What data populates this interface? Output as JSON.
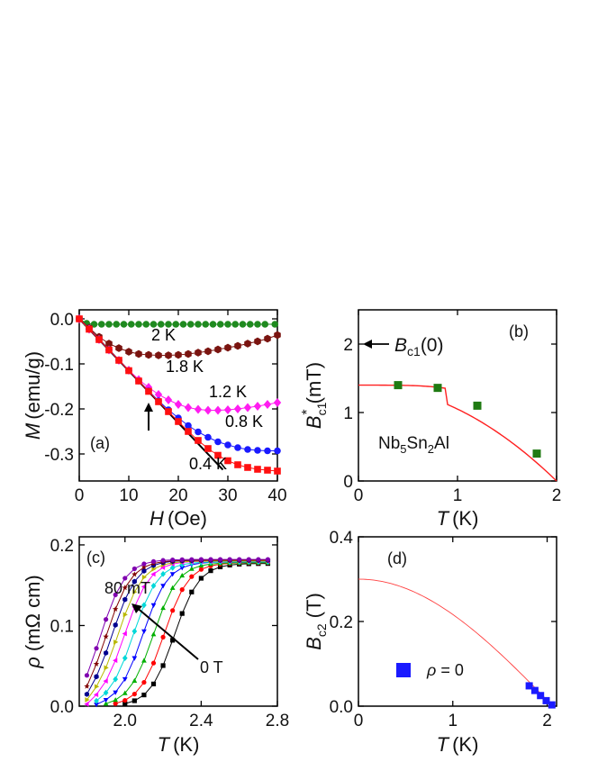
{
  "chart_data": [
    {
      "panel": "(a)",
      "type": "scatter",
      "xlabel": {
        "symbol": "H",
        "unit": "(Oe)"
      },
      "ylabel": {
        "symbol": "M",
        "unit": "(emu/g)"
      },
      "xlim": [
        0,
        40
      ],
      "ylim": [
        -0.36,
        0.02
      ],
      "xticks": [
        "0",
        "10",
        "20",
        "30",
        "40"
      ],
      "yticks": [
        "0.0",
        "-0.1",
        "-0.2",
        "-0.3"
      ],
      "ytick_values": [
        0,
        -0.1,
        -0.2,
        -0.3
      ],
      "xtick_values": [
        0,
        10,
        20,
        30,
        40
      ],
      "series": [
        {
          "name": "2 K",
          "color": "#1f8a1f",
          "marker": "circle",
          "x": [
            0,
            1.5,
            3,
            4.5,
            6,
            7.5,
            9,
            10.5,
            12,
            13.5,
            15,
            16.5,
            18,
            19.5,
            21,
            22.5,
            24,
            25.5,
            27,
            28.5,
            30,
            31.5,
            33,
            34.5,
            36,
            37.5,
            39.5
          ],
          "y": [
            0,
            -0.01,
            -0.012,
            -0.012,
            -0.012,
            -0.012,
            -0.012,
            -0.012,
            -0.012,
            -0.012,
            -0.012,
            -0.012,
            -0.012,
            -0.012,
            -0.012,
            -0.012,
            -0.012,
            -0.012,
            -0.012,
            -0.012,
            -0.012,
            -0.012,
            -0.012,
            -0.012,
            -0.012,
            -0.012,
            -0.012
          ]
        },
        {
          "name": "1.8 K",
          "color": "#7a1410",
          "marker": "hexagon",
          "x": [
            0,
            2,
            4,
            6,
            8,
            10,
            12,
            14,
            16,
            18,
            20,
            22,
            24,
            26,
            28,
            30,
            32,
            34,
            36,
            38,
            40
          ],
          "y": [
            0,
            -0.02,
            -0.04,
            -0.055,
            -0.065,
            -0.073,
            -0.078,
            -0.08,
            -0.081,
            -0.081,
            -0.08,
            -0.078,
            -0.075,
            -0.072,
            -0.068,
            -0.064,
            -0.06,
            -0.055,
            -0.05,
            -0.044,
            -0.036
          ]
        },
        {
          "name": "1.2 K",
          "color": "#ff1cf0",
          "marker": "diamond",
          "x": [
            0,
            2,
            4,
            6,
            8,
            10,
            12,
            14,
            16,
            18,
            20,
            22,
            24,
            26,
            28,
            30,
            32,
            34,
            36,
            38,
            40
          ],
          "y": [
            0,
            -0.023,
            -0.046,
            -0.069,
            -0.092,
            -0.114,
            -0.135,
            -0.152,
            -0.168,
            -0.18,
            -0.19,
            -0.197,
            -0.201,
            -0.203,
            -0.203,
            -0.202,
            -0.2,
            -0.197,
            -0.194,
            -0.19,
            -0.186
          ]
        },
        {
          "name": "0.8 K",
          "color": "#1a1aff",
          "marker": "circle",
          "x": [
            0,
            2,
            4,
            6,
            8,
            10,
            12,
            14,
            16,
            18,
            20,
            22,
            24,
            26,
            28,
            30,
            32,
            34,
            36,
            38,
            40
          ],
          "y": [
            0,
            -0.023,
            -0.046,
            -0.069,
            -0.092,
            -0.115,
            -0.138,
            -0.16,
            -0.182,
            -0.202,
            -0.22,
            -0.237,
            -0.251,
            -0.263,
            -0.273,
            -0.28,
            -0.286,
            -0.29,
            -0.292,
            -0.293,
            -0.293
          ]
        },
        {
          "name": "0.4 K",
          "color": "#ff1010",
          "marker": "square",
          "x": [
            0,
            2,
            4,
            6,
            8,
            10,
            12,
            14,
            16,
            18,
            20,
            22,
            24,
            26,
            28,
            30,
            32,
            34,
            36,
            38,
            40
          ],
          "y": [
            0,
            -0.023,
            -0.046,
            -0.069,
            -0.092,
            -0.115,
            -0.138,
            -0.161,
            -0.184,
            -0.206,
            -0.228,
            -0.25,
            -0.27,
            -0.288,
            -0.303,
            -0.315,
            -0.324,
            -0.33,
            -0.334,
            -0.336,
            -0.338
          ]
        }
      ],
      "fit_line": {
        "x": [
          0,
          29
        ],
        "y": [
          0,
          -0.335
        ]
      },
      "arrow_at_x": 14
    },
    {
      "panel": "(b)",
      "type": "scatter",
      "xlabel": {
        "symbol": "T",
        "unit": "(K)"
      },
      "ylabel": {
        "symbol": "B",
        "sup": "*",
        "sub": "c1",
        "unit": "(mT)"
      },
      "xlim": [
        0,
        2
      ],
      "ylim": [
        0,
        2.5
      ],
      "xticks": [
        "0",
        "1",
        "2"
      ],
      "xtick_values": [
        0,
        1,
        2
      ],
      "yticks": [
        "0",
        "1",
        "2"
      ],
      "ytick_values": [
        0,
        1,
        2
      ],
      "points": {
        "x": [
          0.4,
          0.8,
          1.2,
          1.8
        ],
        "y": [
          1.4,
          1.36,
          1.1,
          0.4
        ],
        "color": "#1f7a12"
      },
      "fit": {
        "Bc1_0": 1.4,
        "Tc": 2.0,
        "color": "#ff2020"
      },
      "annotation": {
        "symbol": "B",
        "sub": "c1",
        "suffix": "(0)",
        "arrow_y": 2.0
      },
      "compound": {
        "parts": [
          "Nb",
          "5",
          "Sn",
          "2",
          "Al"
        ]
      }
    },
    {
      "panel": "(c)",
      "type": "line",
      "xlabel": {
        "symbol": "T",
        "unit": "(K)"
      },
      "ylabel": {
        "symbol": "ρ",
        "unit": "(mΩ cm)"
      },
      "xlim": [
        1.76,
        2.8
      ],
      "ylim": [
        0,
        0.21
      ],
      "xticks": [
        "2.0",
        "2.4",
        "2.8"
      ],
      "xtick_values": [
        2.0,
        2.4,
        2.8
      ],
      "yticks": [
        "0.0",
        "0.1",
        "0.2"
      ],
      "ytick_values": [
        0,
        0.1,
        0.2
      ],
      "label_top": "80 mT",
      "label_bottom": "0 T",
      "curves": [
        {
          "color": "#000000",
          "marker": "square",
          "Tc": 2.26,
          "rmax": 0.177
        },
        {
          "color": "#ff0000",
          "marker": "circle",
          "Tc": 2.205,
          "rmax": 0.178
        },
        {
          "color": "#00b000",
          "marker": "triangle",
          "Tc": 2.15,
          "rmax": 0.178
        },
        {
          "color": "#0000ff",
          "marker": "triangle-down",
          "Tc": 2.095,
          "rmax": 0.179
        },
        {
          "color": "#00d8d8",
          "marker": "diamond",
          "Tc": 2.045,
          "rmax": 0.179
        },
        {
          "color": "#ff00ff",
          "marker": "triangle-left",
          "Tc": 2.0,
          "rmax": 0.18
        },
        {
          "color": "#b8b800",
          "marker": "triangle-right",
          "Tc": 1.965,
          "rmax": 0.18
        },
        {
          "color": "#000090",
          "marker": "hexagon",
          "Tc": 1.935,
          "rmax": 0.181
        },
        {
          "color": "#800000",
          "marker": "star",
          "Tc": 1.905,
          "rmax": 0.181
        },
        {
          "color": "#8000b0",
          "marker": "circle",
          "Tc": 1.875,
          "rmax": 0.182
        }
      ]
    },
    {
      "panel": "(d)",
      "type": "scatter",
      "xlabel": {
        "symbol": "T",
        "unit": "(K)"
      },
      "ylabel": {
        "symbol": "B",
        "sub": "c2",
        "unit": "(T)"
      },
      "xlim": [
        0,
        2.1
      ],
      "ylim": [
        0,
        0.4
      ],
      "xticks": [
        "0",
        "1",
        "2"
      ],
      "xtick_values": [
        0,
        1,
        2
      ],
      "yticks": [
        "0.0",
        "0.2",
        "0.4"
      ],
      "ytick_values": [
        0,
        0.2,
        0.4
      ],
      "points": {
        "x": [
          1.81,
          1.87,
          1.93,
          1.99,
          2.05
        ],
        "y": [
          0.048,
          0.037,
          0.025,
          0.013,
          0.003
        ],
        "color": "#1a1aff"
      },
      "fit": {
        "Bc2_0": 0.3,
        "Tc": 2.06,
        "color": "#ff4040"
      },
      "legend": {
        "symbol": "ρ",
        "text": " = 0",
        "color": "#1a1aff"
      }
    }
  ]
}
